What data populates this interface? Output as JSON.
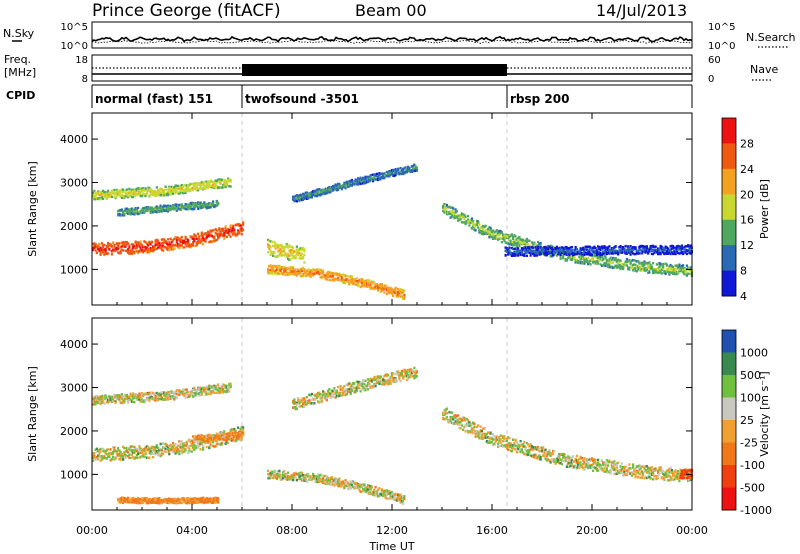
{
  "header": {
    "station": "Prince George (fitACF)",
    "beam": "Beam 00",
    "date": "14/Jul/2013"
  },
  "noise_panel": {
    "left_label": "N.Sky",
    "right_label": "N.Search",
    "left_ticks": [
      "10^5",
      "10^0"
    ],
    "right_ticks": [
      "10^5",
      "10^0"
    ]
  },
  "freq_panel": {
    "left_label_line1": "Freq.",
    "left_label_line2": "[MHz]",
    "left_ticks": [
      "18",
      "8"
    ],
    "right_label": "Nave",
    "right_ticks": [
      "60",
      "0"
    ]
  },
  "cpid_panel": {
    "label": "CPID",
    "segments": [
      {
        "name": "normal (fast) 151",
        "start_hour": 0,
        "end_hour": 6
      },
      {
        "name": "twofsound -3501",
        "start_hour": 6,
        "end_hour": 16.6
      },
      {
        "name": "rbsp 200",
        "start_hour": 16.6,
        "end_hour": 24
      }
    ]
  },
  "power_panel": {
    "ylabel": "Slant Range [km]",
    "colorbar_label": "Power [dB]",
    "colorbar_ticks": [
      "28",
      "24",
      "20",
      "16",
      "12",
      "8",
      "4"
    ],
    "colorbar_colors": [
      "#ee1111",
      "#f05a10",
      "#f4a020",
      "#c8d830",
      "#50a860",
      "#2a6ab4",
      "#1018d8"
    ]
  },
  "velocity_panel": {
    "ylabel": "Slant Range [km]",
    "colorbar_label": "Velocity [m s⁻¹]",
    "colorbar_ticks": [
      "1000",
      "500",
      "100",
      "25",
      "-25",
      "-100",
      "-500",
      "-1000"
    ],
    "colorbar_colors": [
      "#2050b0",
      "#3a8a50",
      "#70c040",
      "#c8c8c0",
      "#f0a030",
      "#f07818",
      "#f04010",
      "#ee1111"
    ]
  },
  "x_axis": {
    "label": "Time UT",
    "ticks": [
      "00:00",
      "04:00",
      "08:00",
      "12:00",
      "16:00",
      "20:00",
      "00:00"
    ]
  },
  "chart_data": [
    {
      "type": "heatmap",
      "title": "Power [dB]",
      "xlabel": "Time UT",
      "ylabel": "Slant Range [km]",
      "xlim": [
        0,
        24
      ],
      "ylim": [
        180,
        4600
      ],
      "yticks": [
        1000,
        2000,
        3000,
        4000
      ],
      "clim": [
        0,
        30
      ],
      "echo_bands": [
        {
          "t": [
            0,
            2,
            4,
            6
          ],
          "range": [
            1450,
            1500,
            1650,
            1950
          ],
          "width": 280,
          "value": 27
        },
        {
          "t": [
            0,
            3,
            5.5
          ],
          "range": [
            2700,
            2800,
            3000
          ],
          "width": 200,
          "value": 17
        },
        {
          "t": [
            1,
            3,
            5
          ],
          "range": [
            2300,
            2400,
            2500
          ],
          "width": 150,
          "value": 12
        },
        {
          "t": [
            7,
            9,
            11,
            12.5
          ],
          "range": [
            1000,
            900,
            650,
            400
          ],
          "width": 200,
          "value": 22
        },
        {
          "t": [
            7,
            8.5
          ],
          "range": [
            1500,
            1300
          ],
          "width": 350,
          "value": 18
        },
        {
          "t": [
            8,
            10.5,
            13
          ],
          "range": [
            2600,
            3000,
            3350
          ],
          "width": 150,
          "value": 10
        },
        {
          "t": [
            14,
            16,
            19,
            22,
            24
          ],
          "range": [
            2400,
            1800,
            1300,
            1050,
            950
          ],
          "width": 250,
          "value": 14
        },
        {
          "t": [
            16.5,
            24
          ],
          "range": [
            1400,
            1450
          ],
          "width": 200,
          "value": 6
        }
      ]
    },
    {
      "type": "heatmap",
      "title": "Velocity [m s⁻¹]",
      "xlabel": "Time UT",
      "ylabel": "Slant Range [km]",
      "xlim": [
        0,
        24
      ],
      "ylim": [
        180,
        4600
      ],
      "yticks": [
        1000,
        2000,
        3000,
        4000
      ],
      "clim": [
        -1000,
        1000
      ],
      "echo_bands": [
        {
          "t": [
            0,
            2,
            4,
            6
          ],
          "range": [
            1450,
            1500,
            1650,
            1950
          ],
          "width": 300,
          "value": 0
        },
        {
          "t": [
            4,
            6
          ],
          "range": [
            1800,
            1900
          ],
          "width": 150,
          "value": -120
        },
        {
          "t": [
            0,
            3,
            5.5
          ],
          "range": [
            2700,
            2800,
            3000
          ],
          "width": 200,
          "value": 0
        },
        {
          "t": [
            1,
            3,
            5
          ],
          "range": [
            400,
            380,
            400
          ],
          "width": 120,
          "value": -150
        },
        {
          "t": [
            7,
            9,
            11,
            12.5
          ],
          "range": [
            1000,
            900,
            650,
            400
          ],
          "width": 200,
          "value": 0
        },
        {
          "t": [
            8,
            10.5,
            13
          ],
          "range": [
            2600,
            3000,
            3350
          ],
          "width": 250,
          "value": 0
        },
        {
          "t": [
            14,
            16,
            19,
            22,
            24
          ],
          "range": [
            2400,
            1800,
            1300,
            1050,
            950
          ],
          "width": 300,
          "value": 0
        },
        {
          "t": [
            23.5,
            24
          ],
          "range": [
            1000,
            1000
          ],
          "width": 200,
          "value": -800
        }
      ]
    }
  ]
}
